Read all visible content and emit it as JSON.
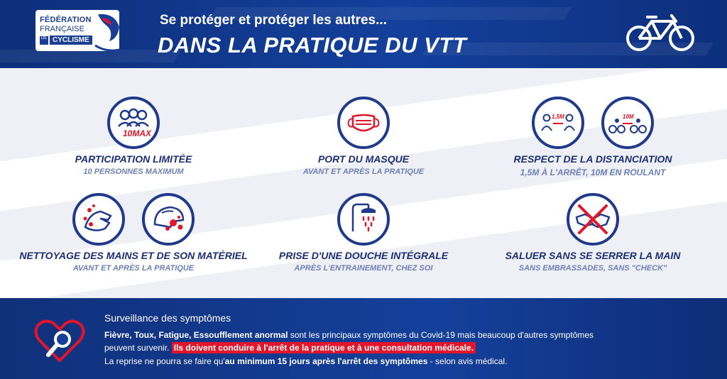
{
  "header": {
    "logo": {
      "line1": "FÉDÉRATION",
      "line2": "FRANÇAISE",
      "de": "DE",
      "line3": "CYCLISME"
    },
    "title_line1": "Se protéger et protéger les autres...",
    "title_line2": "DANS LA PRATIQUE DU VTT",
    "icon": "bicycle-icon"
  },
  "features": {
    "participation": {
      "title": "Participation limitée",
      "subtitle": "10 personnes maximum",
      "icon_label": "10MAX"
    },
    "masque": {
      "title": "Port du masque",
      "subtitle": "Avant et après la pratique"
    },
    "distance": {
      "title": "Respect de la distanciation",
      "subtitle": "1,5m à l'arrêt, 10m en roulant",
      "icon1_label": "1,5M",
      "icon2_label": "10M"
    },
    "mains": {
      "title": "Nettoyage des mains et de son matériel",
      "subtitle": "Avant et après la pratique"
    },
    "douche": {
      "title": "Prise d'une douche intégrale",
      "subtitle": "Après l'entrainement, chez soi"
    },
    "saluer": {
      "title": "Saluer sans se serrer la main",
      "subtitle": "Sans embrassades, sans \"check\""
    }
  },
  "footer": {
    "title": "Surveillance des symptômes",
    "line1_bold": "Fièvre, Toux, Fatigue, Essoufflement anormal",
    "line1_rest": " sont les principaux symptômes du Covid-19 mais beaucoup d'autres symptômes",
    "line2_start": "peuvent survenir. ",
    "line2_highlight": "Ils doivent conduire à l'arrêt de la pratique et à une consultation médicale.",
    "line3_start": "La reprise ne pourra se faire qu'",
    "line3_bold": "au minimum 15 jours après l'arrêt des symptômes",
    "line3_end": " - selon avis médical."
  },
  "colors": {
    "navy": "#1f3a8a",
    "red": "#e3152b",
    "header_blue": "#13409c"
  }
}
